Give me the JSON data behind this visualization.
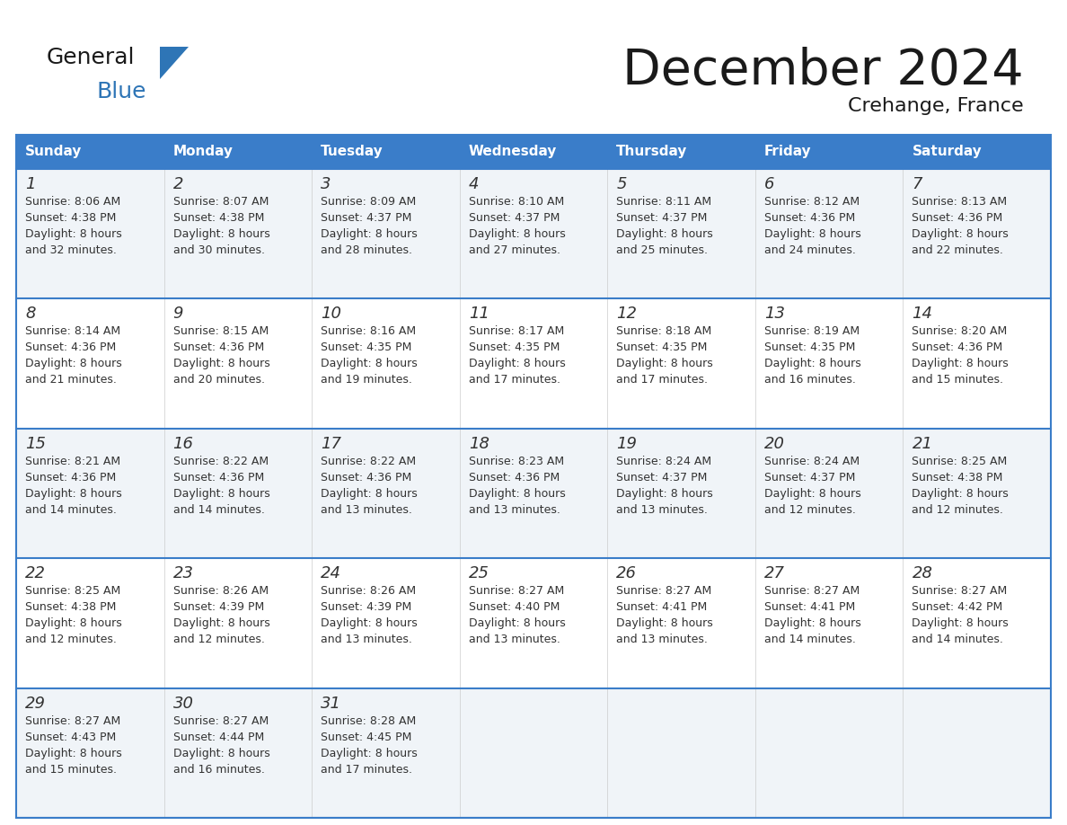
{
  "title": "December 2024",
  "subtitle": "Crehange, France",
  "header_color": "#3A7DC9",
  "header_text_color": "#FFFFFF",
  "days_of_week": [
    "Sunday",
    "Monday",
    "Tuesday",
    "Wednesday",
    "Thursday",
    "Friday",
    "Saturday"
  ],
  "weeks": [
    [
      {
        "day": 1,
        "sunrise": "8:06 AM",
        "sunset": "4:38 PM",
        "daylight": "8 hours and 32 minutes"
      },
      {
        "day": 2,
        "sunrise": "8:07 AM",
        "sunset": "4:38 PM",
        "daylight": "8 hours and 30 minutes"
      },
      {
        "day": 3,
        "sunrise": "8:09 AM",
        "sunset": "4:37 PM",
        "daylight": "8 hours and 28 minutes"
      },
      {
        "day": 4,
        "sunrise": "8:10 AM",
        "sunset": "4:37 PM",
        "daylight": "8 hours and 27 minutes"
      },
      {
        "day": 5,
        "sunrise": "8:11 AM",
        "sunset": "4:37 PM",
        "daylight": "8 hours and 25 minutes"
      },
      {
        "day": 6,
        "sunrise": "8:12 AM",
        "sunset": "4:36 PM",
        "daylight": "8 hours and 24 minutes"
      },
      {
        "day": 7,
        "sunrise": "8:13 AM",
        "sunset": "4:36 PM",
        "daylight": "8 hours and 22 minutes"
      }
    ],
    [
      {
        "day": 8,
        "sunrise": "8:14 AM",
        "sunset": "4:36 PM",
        "daylight": "8 hours and 21 minutes"
      },
      {
        "day": 9,
        "sunrise": "8:15 AM",
        "sunset": "4:36 PM",
        "daylight": "8 hours and 20 minutes"
      },
      {
        "day": 10,
        "sunrise": "8:16 AM",
        "sunset": "4:35 PM",
        "daylight": "8 hours and 19 minutes"
      },
      {
        "day": 11,
        "sunrise": "8:17 AM",
        "sunset": "4:35 PM",
        "daylight": "8 hours and 17 minutes"
      },
      {
        "day": 12,
        "sunrise": "8:18 AM",
        "sunset": "4:35 PM",
        "daylight": "8 hours and 17 minutes"
      },
      {
        "day": 13,
        "sunrise": "8:19 AM",
        "sunset": "4:35 PM",
        "daylight": "8 hours and 16 minutes"
      },
      {
        "day": 14,
        "sunrise": "8:20 AM",
        "sunset": "4:36 PM",
        "daylight": "8 hours and 15 minutes"
      }
    ],
    [
      {
        "day": 15,
        "sunrise": "8:21 AM",
        "sunset": "4:36 PM",
        "daylight": "8 hours and 14 minutes"
      },
      {
        "day": 16,
        "sunrise": "8:22 AM",
        "sunset": "4:36 PM",
        "daylight": "8 hours and 14 minutes"
      },
      {
        "day": 17,
        "sunrise": "8:22 AM",
        "sunset": "4:36 PM",
        "daylight": "8 hours and 13 minutes"
      },
      {
        "day": 18,
        "sunrise": "8:23 AM",
        "sunset": "4:36 PM",
        "daylight": "8 hours and 13 minutes"
      },
      {
        "day": 19,
        "sunrise": "8:24 AM",
        "sunset": "4:37 PM",
        "daylight": "8 hours and 13 minutes"
      },
      {
        "day": 20,
        "sunrise": "8:24 AM",
        "sunset": "4:37 PM",
        "daylight": "8 hours and 12 minutes"
      },
      {
        "day": 21,
        "sunrise": "8:25 AM",
        "sunset": "4:38 PM",
        "daylight": "8 hours and 12 minutes"
      }
    ],
    [
      {
        "day": 22,
        "sunrise": "8:25 AM",
        "sunset": "4:38 PM",
        "daylight": "8 hours and 12 minutes"
      },
      {
        "day": 23,
        "sunrise": "8:26 AM",
        "sunset": "4:39 PM",
        "daylight": "8 hours and 12 minutes"
      },
      {
        "day": 24,
        "sunrise": "8:26 AM",
        "sunset": "4:39 PM",
        "daylight": "8 hours and 13 minutes"
      },
      {
        "day": 25,
        "sunrise": "8:27 AM",
        "sunset": "4:40 PM",
        "daylight": "8 hours and 13 minutes"
      },
      {
        "day": 26,
        "sunrise": "8:27 AM",
        "sunset": "4:41 PM",
        "daylight": "8 hours and 13 minutes"
      },
      {
        "day": 27,
        "sunrise": "8:27 AM",
        "sunset": "4:41 PM",
        "daylight": "8 hours and 14 minutes"
      },
      {
        "day": 28,
        "sunrise": "8:27 AM",
        "sunset": "4:42 PM",
        "daylight": "8 hours and 14 minutes"
      }
    ],
    [
      {
        "day": 29,
        "sunrise": "8:27 AM",
        "sunset": "4:43 PM",
        "daylight": "8 hours and 15 minutes"
      },
      {
        "day": 30,
        "sunrise": "8:27 AM",
        "sunset": "4:44 PM",
        "daylight": "8 hours and 16 minutes"
      },
      {
        "day": 31,
        "sunrise": "8:28 AM",
        "sunset": "4:45 PM",
        "daylight": "8 hours and 17 minutes"
      },
      null,
      null,
      null,
      null
    ]
  ],
  "bg_color": "#FFFFFF",
  "cell_bg_odd": "#F0F4F8",
  "cell_bg_even": "#FFFFFF",
  "divider_color": "#3A7DC9",
  "text_color": "#333333",
  "day_number_color": "#333333",
  "logo_black": "#1a1a1a",
  "logo_blue": "#2E75B6",
  "logo_triangle": "#2E75B6"
}
